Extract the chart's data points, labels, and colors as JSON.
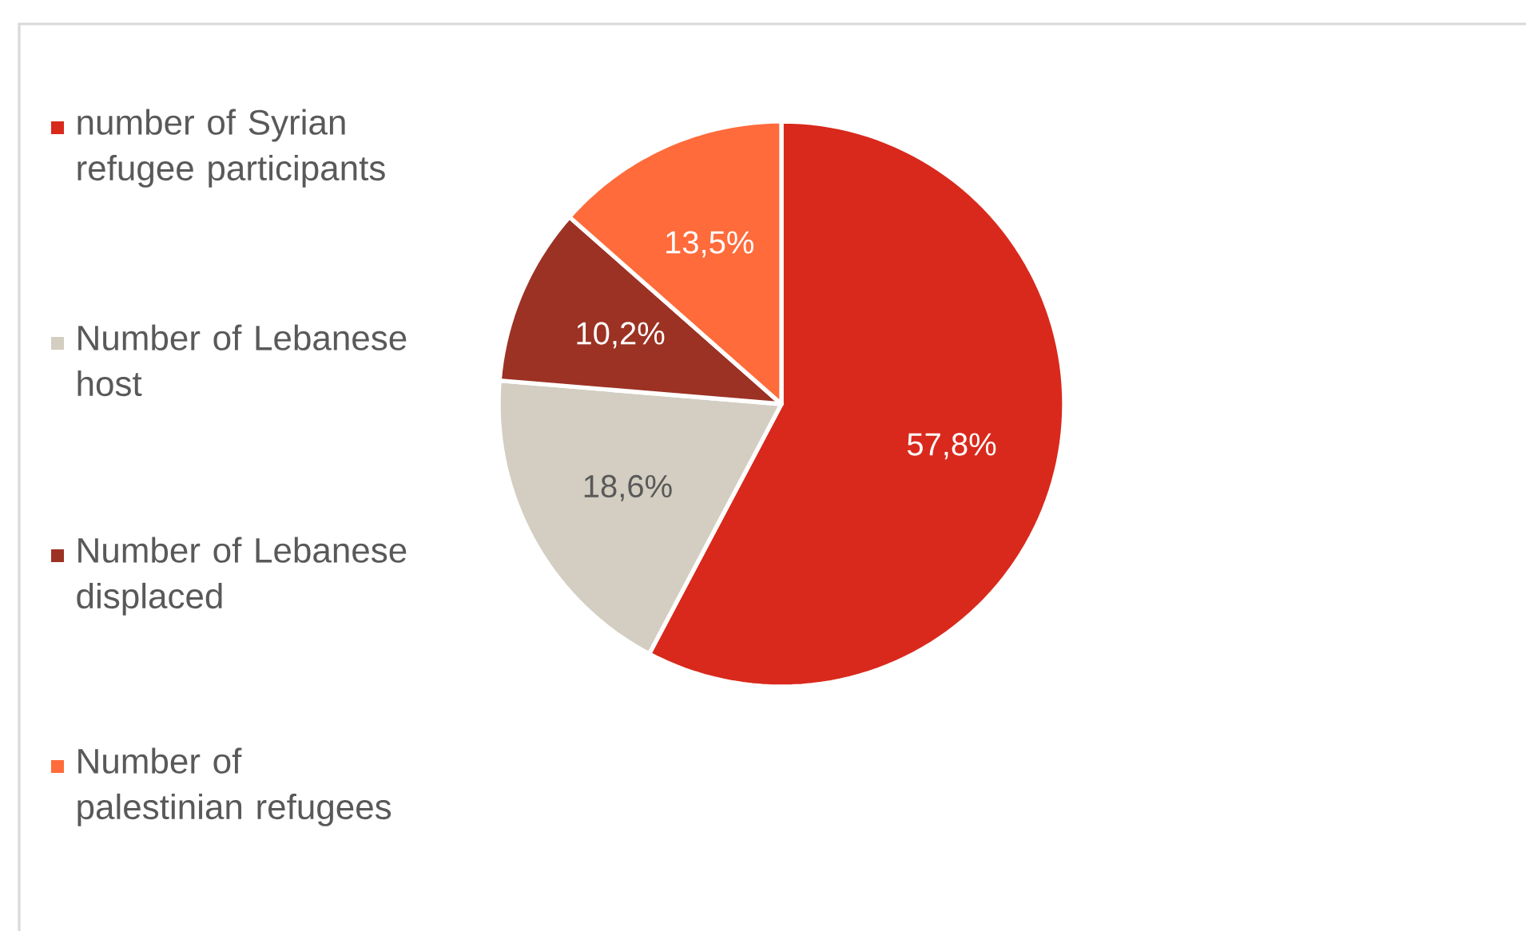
{
  "chart_data": {
    "type": "pie",
    "categories": [
      "number of Syrian refugee participants",
      "Number of Lebanese host",
      "Number of Lebanese displaced",
      "Number of palestinian refugees"
    ],
    "values": [
      57.8,
      18.6,
      10.2,
      13.5
    ],
    "colors": [
      "#d9291c",
      "#d3cec1",
      "#9c3224",
      "#ff6b3b"
    ],
    "value_labels": [
      "57,8%",
      "18,6%",
      "10,2%",
      "13,5%"
    ],
    "legend": "left"
  }
}
